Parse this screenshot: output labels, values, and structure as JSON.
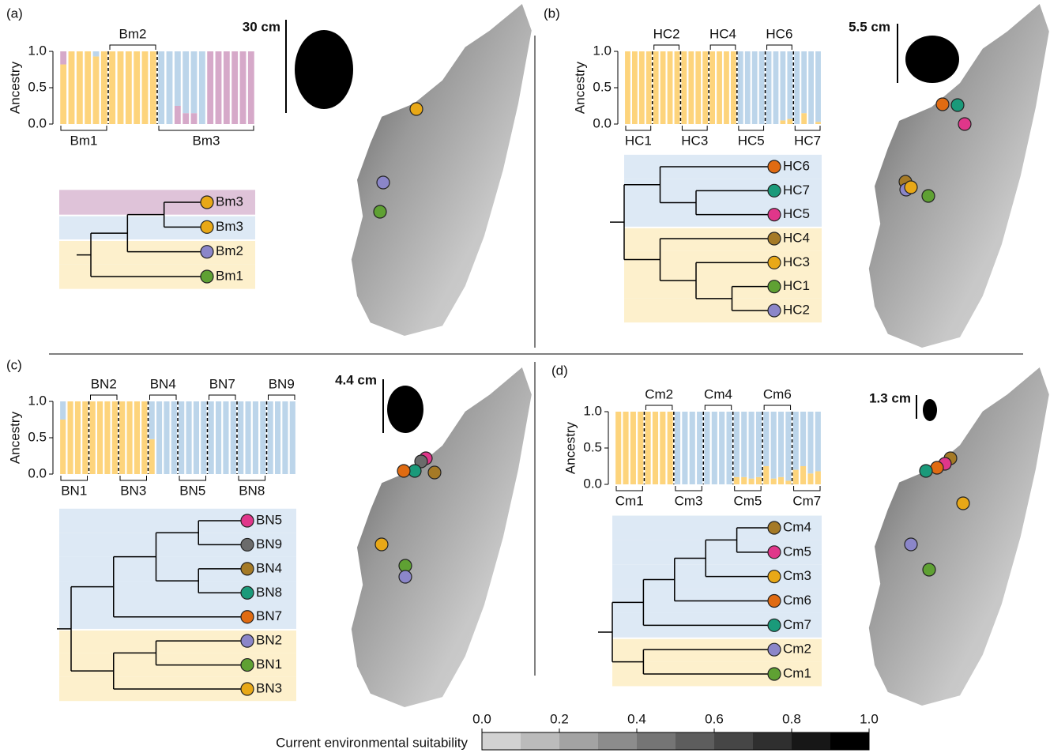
{
  "panels": [
    {
      "label": "(a)",
      "scale_label": "30 cm",
      "ancestry": {
        "type": "bar",
        "y_label": "Ancestry",
        "ylim": [
          0,
          1
        ],
        "yticks": [
          {
            "value": 0,
            "label": "0.0"
          },
          {
            "value": 0.5,
            "label": "0.5"
          },
          {
            "value": 1,
            "label": "1.0"
          }
        ],
        "groups": [
          "Bm1",
          "Bm2",
          "Bm3"
        ],
        "series": [
          {
            "color": "#fdd47c",
            "values": [
              0.82,
              1,
              1,
              1,
              0.93,
              1,
              1,
              1,
              1,
              1,
              1,
              1,
              0,
              0,
              0,
              0,
              0,
              0,
              0,
              0,
              0,
              0,
              0,
              0
            ]
          },
          {
            "color": "#d6a9c9",
            "values": [
              0.18,
              0,
              0,
              0,
              0,
              0,
              0,
              0,
              0,
              0,
              0,
              0,
              0,
              0,
              0.25,
              0.15,
              0.15,
              0,
              1,
              1,
              1,
              1,
              1,
              1
            ]
          },
          {
            "color": "#bcd5ea",
            "values": [
              0,
              0,
              0,
              0,
              0.07,
              0,
              0,
              0,
              0,
              0,
              0,
              0,
              1,
              1,
              0.75,
              0.85,
              0.85,
              1,
              0,
              0,
              0,
              0,
              0,
              0
            ]
          }
        ]
      },
      "tree": {
        "leaves": [
          {
            "label": "Bm3",
            "color": "#e8a817",
            "band": "#dfc3d9"
          },
          {
            "label": "Bm3",
            "color": "#e8a817",
            "band": "#dde9f5"
          },
          {
            "label": "Bm2",
            "color": "#8b86c9",
            "band": "#fdf0cc"
          },
          {
            "label": "Bm1",
            "color": "#5fa133",
            "band": "#fdf0cc"
          }
        ]
      }
    },
    {
      "label": "(b)",
      "scale_label": "5.5 cm",
      "ancestry": {
        "type": "bar",
        "y_label": "Ancestry",
        "ylim": [
          0,
          1
        ],
        "yticks": [
          {
            "value": 0,
            "label": "0.0"
          },
          {
            "value": 0.5,
            "label": "0.5"
          },
          {
            "value": 1,
            "label": "1.0"
          }
        ],
        "groups": [
          "HC1",
          "HC2",
          "HC3",
          "HC4",
          "HC5",
          "HC6",
          "HC7"
        ],
        "series": [
          {
            "color": "#fdd47c",
            "values": [
              1,
              1,
              1,
              1,
              1,
              1,
              1,
              1,
              1,
              1,
              1,
              1,
              1,
              1,
              1,
              1,
              0,
              0,
              0,
              0,
              0,
              0,
              0.05,
              0.07,
              0,
              0.15,
              0,
              0.03
            ]
          },
          {
            "color": "#bcd5ea",
            "values": [
              0,
              0,
              0,
              0,
              0,
              0,
              0,
              0,
              0,
              0,
              0,
              0,
              0,
              0,
              0,
              0,
              1,
              1,
              1,
              1,
              1,
              1,
              0.95,
              0.93,
              1,
              0.85,
              1,
              0.97
            ]
          }
        ]
      },
      "tree": {
        "leaves": [
          {
            "label": "HC6",
            "color": "#e06b12",
            "band": "#dde9f5"
          },
          {
            "label": "HC7",
            "color": "#1a9a7a",
            "band": "#dde9f5"
          },
          {
            "label": "HC5",
            "color": "#e0368a",
            "band": "#dde9f5"
          },
          {
            "label": "HC4",
            "color": "#a57a26",
            "band": "#fdf0cc"
          },
          {
            "label": "HC3",
            "color": "#e8a817",
            "band": "#fdf0cc"
          },
          {
            "label": "HC1",
            "color": "#5fa133",
            "band": "#fdf0cc"
          },
          {
            "label": "HC2",
            "color": "#8b86c9",
            "band": "#fdf0cc"
          }
        ]
      }
    },
    {
      "label": "(c)",
      "scale_label": "4.4 cm",
      "ancestry": {
        "type": "bar",
        "y_label": "Ancestry",
        "ylim": [
          0,
          1
        ],
        "yticks": [
          {
            "value": 0,
            "label": "0.0"
          },
          {
            "value": 0.5,
            "label": "0.5"
          },
          {
            "value": 1,
            "label": "1.0"
          }
        ],
        "groups": [
          "BN1",
          "BN2",
          "BN3",
          "BN4",
          "BN5",
          "BN7",
          "BN8",
          "BN9"
        ],
        "series": [
          {
            "color": "#fdd47c",
            "values": [
              0.75,
              1,
              1,
              1,
              1,
              1,
              1,
              1,
              1,
              1,
              1,
              1,
              0.48,
              0,
              0,
              0,
              0,
              0,
              0,
              0,
              0,
              0,
              0,
              0,
              0,
              0,
              0,
              0,
              0,
              0,
              0,
              0
            ]
          },
          {
            "color": "#bcd5ea",
            "values": [
              0.25,
              0,
              0,
              0,
              0,
              0,
              0,
              0,
              0,
              0,
              0,
              0,
              0.52,
              1,
              1,
              1,
              1,
              1,
              1,
              1,
              1,
              1,
              1,
              1,
              1,
              1,
              1,
              1,
              1,
              1,
              1,
              1
            ]
          }
        ]
      },
      "tree": {
        "leaves": [
          {
            "label": "BN5",
            "color": "#e0368a",
            "band": "#dde9f5"
          },
          {
            "label": "BN9",
            "color": "#6b6b6b",
            "band": "#dde9f5"
          },
          {
            "label": "BN4",
            "color": "#a57a26",
            "band": "#dde9f5"
          },
          {
            "label": "BN8",
            "color": "#1a9a7a",
            "band": "#dde9f5"
          },
          {
            "label": "BN7",
            "color": "#e06b12",
            "band": "#dde9f5"
          },
          {
            "label": "BN2",
            "color": "#8b86c9",
            "band": "#fdf0cc"
          },
          {
            "label": "BN1",
            "color": "#5fa133",
            "band": "#fdf0cc"
          },
          {
            "label": "BN3",
            "color": "#e8a817",
            "band": "#fdf0cc"
          }
        ]
      }
    },
    {
      "label": "(d)",
      "scale_label": "1.3 cm",
      "ancestry": {
        "type": "bar",
        "y_label": "Ancestry",
        "ylim": [
          0,
          1
        ],
        "yticks": [
          {
            "value": 0,
            "label": "0.0"
          },
          {
            "value": 0.5,
            "label": "0.5"
          },
          {
            "value": 1,
            "label": "1.0"
          }
        ],
        "groups": [
          "Cm1",
          "Cm2",
          "Cm3",
          "Cm4",
          "Cm5",
          "Cm6",
          "Cm7"
        ],
        "series": [
          {
            "color": "#fdd47c",
            "values": [
              1,
              1,
              1,
              1,
              1,
              1,
              1,
              1,
              0,
              0,
              0,
              0,
              0,
              0,
              0,
              0,
              0.1,
              0.1,
              0.08,
              0.1,
              0.25,
              0.08,
              0.1,
              0.05,
              0.2,
              0.25,
              0.15,
              0.18
            ]
          },
          {
            "color": "#bcd5ea",
            "values": [
              0,
              0,
              0,
              0,
              0,
              0,
              0,
              0,
              1,
              1,
              1,
              1,
              1,
              1,
              1,
              1,
              0.9,
              0.9,
              0.92,
              0.9,
              0.75,
              0.92,
              0.9,
              0.95,
              0.8,
              0.75,
              0.85,
              0.82
            ]
          }
        ]
      },
      "tree": {
        "leaves": [
          {
            "label": "Cm4",
            "color": "#a57a26",
            "band": "#dde9f5"
          },
          {
            "label": "Cm5",
            "color": "#e0368a",
            "band": "#dde9f5"
          },
          {
            "label": "Cm3",
            "color": "#e8a817",
            "band": "#dde9f5"
          },
          {
            "label": "Cm6",
            "color": "#e06b12",
            "band": "#dde9f5"
          },
          {
            "label": "Cm7",
            "color": "#1a9a7a",
            "band": "#dde9f5"
          },
          {
            "label": "Cm2",
            "color": "#8b86c9",
            "band": "#fdf0cc"
          },
          {
            "label": "Cm1",
            "color": "#5fa133",
            "band": "#fdf0cc"
          }
        ]
      }
    }
  ],
  "colorbar": {
    "title": "Current environmental suitability",
    "xlim": [
      0,
      1
    ],
    "xticks": [
      {
        "value": 0,
        "label": "0.0"
      },
      {
        "value": 0.2,
        "label": "0.2"
      },
      {
        "value": 0.4,
        "label": "0.4"
      },
      {
        "value": 0.6,
        "label": "0.6"
      },
      {
        "value": 0.8,
        "label": "0.8"
      },
      {
        "value": 1,
        "label": "1.0"
      }
    ]
  }
}
